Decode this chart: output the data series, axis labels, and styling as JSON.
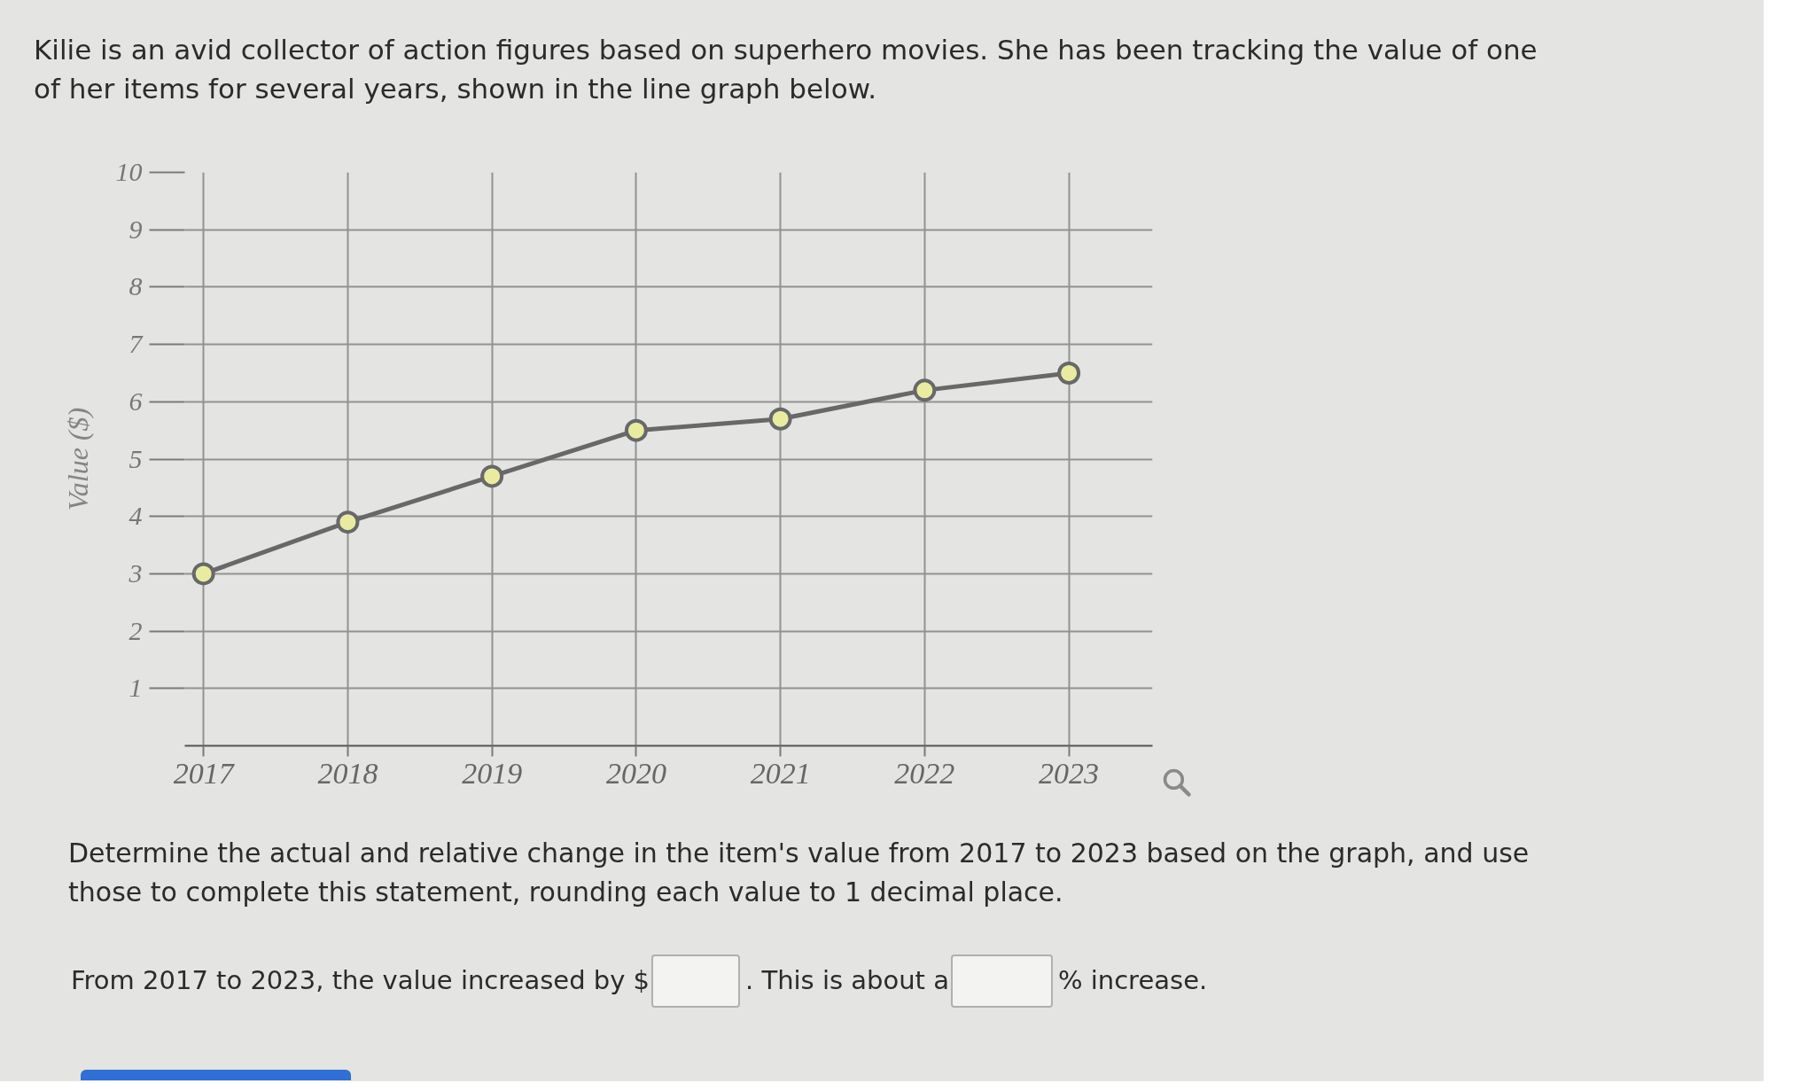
{
  "chart_data": {
    "type": "line",
    "title": "Kilie is an avid collector of action figures based on superhero movies. She has been tracking the value of one of her items for several years, shown in the line graph below.",
    "ylabel": "Value ($)",
    "categories": [
      "2017",
      "2018",
      "2019",
      "2020",
      "2021",
      "2022",
      "2023"
    ],
    "series": [
      {
        "color": "#686868",
        "values": [
          3,
          3.9,
          4.7,
          5.5,
          5.7,
          6.2,
          6.5
        ]
      }
    ],
    "ylim": [
      0,
      10
    ],
    "yticks": [
      1,
      2,
      3,
      4,
      5,
      6,
      7,
      8,
      9,
      10
    ],
    "grid": true,
    "marker": "circle",
    "line_style": "solid",
    "annotations": [
      "Determine the actual and relative change in the item's value from 2017 to 2023 based on the graph, and use those to complete this statement, rounding each value to 1 decimal place.",
      "From 2017 to 2023, the value increased by $",
      ". This is about a",
      "% increase."
    ]
  }
}
